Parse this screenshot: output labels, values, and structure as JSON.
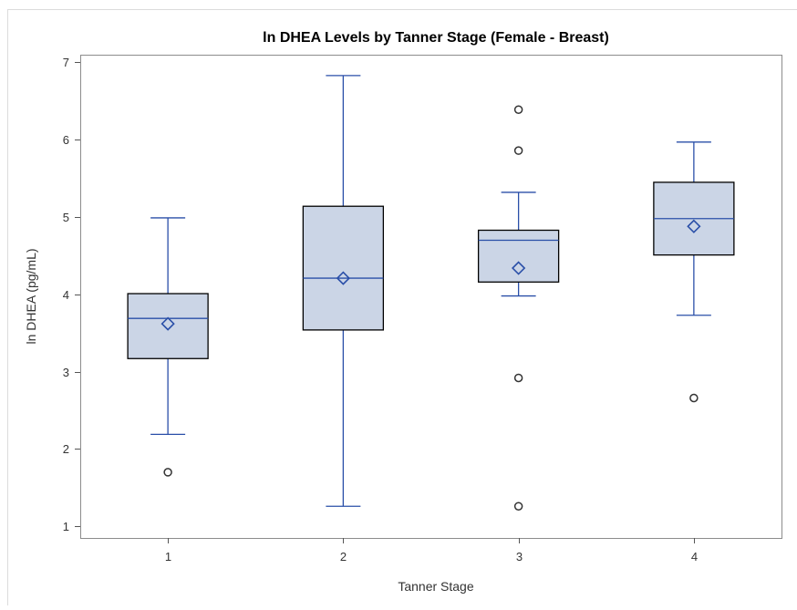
{
  "chart_data": {
    "type": "boxplot",
    "title": "ln DHEA Levels by Tanner Stage (Female - Breast)",
    "xlabel": "Tanner Stage",
    "ylabel": "ln DHEA (pg/mL)",
    "categories": [
      "1",
      "2",
      "3",
      "4"
    ],
    "ylim": [
      0.85,
      7.1
    ],
    "yticks": [
      1,
      2,
      3,
      4,
      5,
      6,
      7
    ],
    "grid": false,
    "colors": {
      "box_fill": "#cbd5e6",
      "box_stroke": "#000000",
      "whisker": "#2a4fa8",
      "mean_marker": "#2a4fa8",
      "outlier": "#333333"
    },
    "boxes": [
      {
        "category": "1",
        "whisker_low": 2.19,
        "q1": 3.17,
        "median": 3.69,
        "q3": 4.01,
        "whisker_high": 4.99,
        "mean": 3.62,
        "outliers": [
          1.7
        ]
      },
      {
        "category": "2",
        "whisker_low": 1.26,
        "q1": 3.54,
        "median": 4.21,
        "q3": 5.14,
        "whisker_high": 6.83,
        "mean": 4.21,
        "outliers": []
      },
      {
        "category": "3",
        "whisker_low": 3.98,
        "q1": 4.16,
        "median": 4.7,
        "q3": 4.83,
        "whisker_high": 5.32,
        "mean": 4.34,
        "outliers": [
          6.39,
          5.86,
          2.92,
          1.26
        ]
      },
      {
        "category": "4",
        "whisker_low": 3.73,
        "q1": 4.51,
        "median": 4.98,
        "q3": 5.45,
        "whisker_high": 5.97,
        "mean": 4.88,
        "outliers": [
          2.66
        ]
      }
    ]
  }
}
